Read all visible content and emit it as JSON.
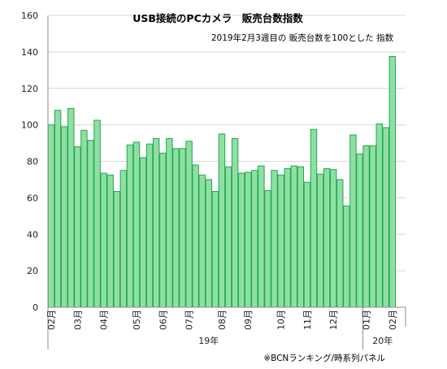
{
  "chart_data": {
    "type": "bar",
    "title": "USB接続のPCカメラ　販売台数指数",
    "subtitle": "2019年2月3週目の 販売台数を100とした 指数",
    "note": "※BCNランキング/時系列パネル",
    "ylim": [
      0,
      160
    ],
    "yticks": [
      "0",
      "20",
      "40",
      "60",
      "80",
      "100",
      "120",
      "140",
      "160"
    ],
    "values": [
      100,
      108,
      99,
      109,
      88,
      97,
      91.5,
      102.5,
      73.5,
      72.5,
      63.5,
      75,
      89,
      90.5,
      82,
      89.5,
      92.5,
      84.5,
      92.5,
      87,
      87,
      91,
      78,
      72.5,
      70,
      63.5,
      95,
      77,
      92.5,
      73.5,
      74,
      75,
      77.5,
      64,
      75,
      72.5,
      76,
      77.5,
      77,
      68.5,
      97.5,
      73,
      76,
      75.5,
      70,
      55.5,
      94.5,
      84,
      88.5,
      88.5,
      100.5,
      98.5,
      137.5
    ],
    "month_labels": [
      {
        "label": "02月",
        "index": 0
      },
      {
        "label": "03月",
        "index": 4
      },
      {
        "label": "04月",
        "index": 8
      },
      {
        "label": "05月",
        "index": 13
      },
      {
        "label": "06月",
        "index": 17
      },
      {
        "label": "07月",
        "index": 21
      },
      {
        "label": "08月",
        "index": 26
      },
      {
        "label": "09月",
        "index": 30
      },
      {
        "label": "10月",
        "index": 35
      },
      {
        "label": "11月",
        "index": 39
      },
      {
        "label": "12月",
        "index": 43
      },
      {
        "label": "01月",
        "index": 48
      },
      {
        "label": "02月",
        "index": 52
      }
    ],
    "year_labels": [
      {
        "label": "19年",
        "start": 0,
        "end": 47
      },
      {
        "label": "20年",
        "start": 48,
        "end": 52
      }
    ],
    "grid": true,
    "legend": "none"
  }
}
